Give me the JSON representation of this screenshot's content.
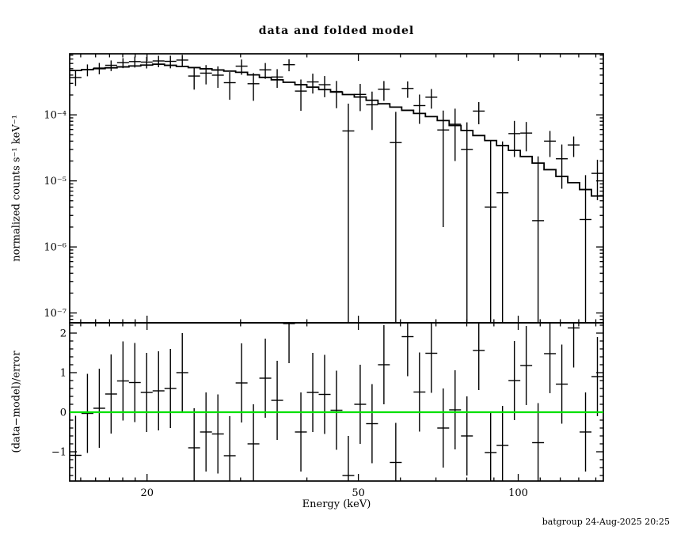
{
  "title": "data and folded model",
  "footer": "batgroup 24-Aug-2025 20:25",
  "x_axis": {
    "label": "Energy (keV)",
    "scale": "log",
    "major_ticks": [
      20,
      50,
      100
    ],
    "minor_ticks": [
      15,
      16,
      17,
      18,
      19,
      30,
      40,
      60,
      70,
      80,
      90,
      110,
      120,
      130,
      140
    ]
  },
  "chart_data": [
    {
      "type": "scatter",
      "panel": "top",
      "title": "data and folded model",
      "xlabel": "Energy (keV)",
      "ylabel": "normalized counts s⁻¹ keV⁻¹",
      "x_scale": "log",
      "y_scale": "log",
      "xlim": [
        14.3,
        144.63
      ],
      "ylim": [
        7.1e-08,
        0.00084
      ],
      "y_major_ticks": [
        {
          "value": 0.0001,
          "label": "10⁻⁴"
        },
        {
          "value": 1e-05,
          "label": "10⁻⁵"
        },
        {
          "value": 1e-06,
          "label": "10⁻⁶"
        },
        {
          "value": 1e-07,
          "label": "10⁻⁷"
        }
      ],
      "bin_edges_keV": [
        14.3,
        15.05,
        15.85,
        16.68,
        17.56,
        18.49,
        19.46,
        20.49,
        21.57,
        22.71,
        23.91,
        25.17,
        26.5,
        27.9,
        29.37,
        30.92,
        32.55,
        34.27,
        36.08,
        37.98,
        39.99,
        42.1,
        44.32,
        46.66,
        49.12,
        51.71,
        54.44,
        57.31,
        60.34,
        63.52,
        66.87,
        70.4,
        74.12,
        78.03,
        82.15,
        86.48,
        91.04,
        95.85,
        100.91,
        106.23,
        111.84,
        117.74,
        123.95,
        130.49,
        137.38,
        144.63
      ],
      "series": [
        {
          "name": "data",
          "style": "error-bars",
          "values": [
            0.000367,
            0.000482,
            0.000511,
            0.000563,
            0.000616,
            0.000641,
            0.000629,
            0.000655,
            0.000646,
            0.000675,
            0.000387,
            0.000428,
            0.000399,
            0.000307,
            0.000546,
            0.000296,
            0.00048,
            0.000374,
            0.000575,
            0.000229,
            0.000315,
            0.000286,
            0.000226,
            5.7e-05,
            0.000204,
            0.000142,
            0.000244,
            3.8e-05,
            0.000251,
            0.000138,
            0.000185,
            5.9e-05,
            7.2e-05,
            3e-05,
            0.000114,
            4e-06,
            6.6e-06,
            5.2e-05,
            5.3e-05,
            2.5e-06,
            4e-05,
            2.16e-05,
            3.5e-05,
            2.6e-06,
            1.3e-05
          ],
          "errors": [
            9.4e-05,
            9.8e-05,
            0.0001,
            0.000103,
            0.000107,
            0.000121,
            0.000125,
            0.000129,
            0.00014,
            0.000135,
            0.000146,
            0.000139,
            0.000143,
            0.000138,
            0.000142,
            0.000133,
            0.000129,
            0.000118,
            0.000118,
            0.000114,
            0.000105,
            0.000101,
            0.0001,
            9.1e-05,
            9e-05,
            8.3e-05,
            8.1e-05,
            7.3e-05,
            7e-05,
            6.5e-05,
            6.1e-05,
            5.7e-05,
            5.2e-05,
            4.7e-05,
            4.2e-05,
            3.6e-05,
            3.3e-05,
            2.9e-05,
            2.5e-05,
            2.1e-05,
            1.7e-05,
            1.4e-05,
            1.2e-05,
            9.6e-06,
            7.9e-06
          ]
        },
        {
          "name": "folded model",
          "style": "step-line",
          "values": [
            0.000469,
            0.000485,
            0.000501,
            0.000516,
            0.000532,
            0.00055,
            0.000567,
            0.000585,
            0.000562,
            0.00054,
            0.000519,
            0.000498,
            0.000478,
            0.000459,
            0.000441,
            0.000403,
            0.000369,
            0.000339,
            0.000311,
            0.000286,
            0.000263,
            0.000241,
            0.000221,
            0.000203,
            0.000186,
            0.000166,
            0.000147,
            0.000131,
            0.000117,
            0.000105,
            9.4e-05,
            8.2e-05,
            6.9e-05,
            5.8e-05,
            4.86e-05,
            4.08e-05,
            3.43e-05,
            2.89e-05,
            2.34e-05,
            1.86e-05,
            1.48e-05,
            1.17e-05,
            9.4e-06,
            7.4e-06,
            5.9e-06
          ]
        }
      ]
    },
    {
      "type": "scatter",
      "panel": "bottom",
      "ylabel": "(data−model)/error",
      "x_scale": "log",
      "y_scale": "linear",
      "xlim": [
        14.3,
        144.63
      ],
      "ylim": [
        -1.74,
        2.26
      ],
      "y_major_ticks": [
        {
          "value": -1,
          "label": "−1"
        },
        {
          "value": 0,
          "label": "0"
        },
        {
          "value": 1,
          "label": "1"
        },
        {
          "value": 2,
          "label": "2"
        }
      ],
      "zero_line_color": "#00e000",
      "series": [
        {
          "name": "(data−model)/error",
          "style": "error-bars",
          "values": [
            -1.09,
            -0.03,
            0.1,
            0.46,
            0.79,
            0.75,
            0.5,
            0.54,
            0.6,
            1.0,
            -0.9,
            -0.5,
            -0.55,
            -1.1,
            0.74,
            -0.8,
            0.86,
            0.3,
            2.24,
            -0.5,
            0.5,
            0.45,
            0.05,
            -1.6,
            0.2,
            -0.29,
            1.2,
            -1.27,
            1.91,
            0.51,
            1.49,
            -0.4,
            0.06,
            -0.6,
            1.56,
            -1.02,
            -0.84,
            0.8,
            1.18,
            -0.77,
            1.48,
            0.71,
            2.13,
            -0.5,
            0.9
          ],
          "errors_constant": 1
        }
      ]
    }
  ]
}
